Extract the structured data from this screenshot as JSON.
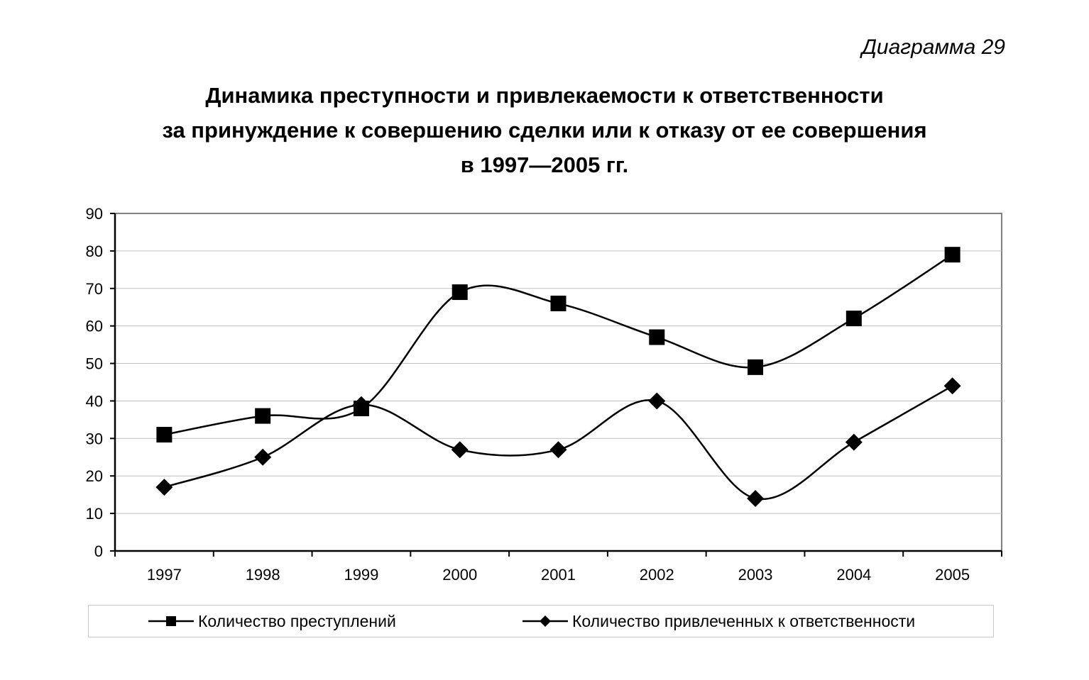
{
  "caption": "Диаграмма 29",
  "title_lines": [
    "Динамика преступности и привлекаемости к ответственности",
    "за принуждение к совершению сделки или к отказу от ее совершения",
    "в 1997—2005 гг."
  ],
  "chart_data": {
    "type": "line",
    "categories": [
      "1997",
      "1998",
      "1999",
      "2000",
      "2001",
      "2002",
      "2003",
      "2004",
      "2005"
    ],
    "ylim": [
      0,
      90
    ],
    "yticks": [
      "0",
      "10",
      "20",
      "30",
      "40",
      "50",
      "60",
      "70",
      "80",
      "90"
    ],
    "grid": true,
    "smooth": true,
    "legend_position": "bottom",
    "series": [
      {
        "name": "Количество преступлений",
        "marker": "square",
        "color": "#000000",
        "values": [
          31,
          36,
          38,
          69,
          66,
          57,
          49,
          62,
          79
        ]
      },
      {
        "name": "Количество привлеченных к ответственности",
        "marker": "diamond",
        "color": "#000000",
        "values": [
          17,
          25,
          39,
          27,
          27,
          40,
          14,
          29,
          44
        ]
      }
    ]
  }
}
